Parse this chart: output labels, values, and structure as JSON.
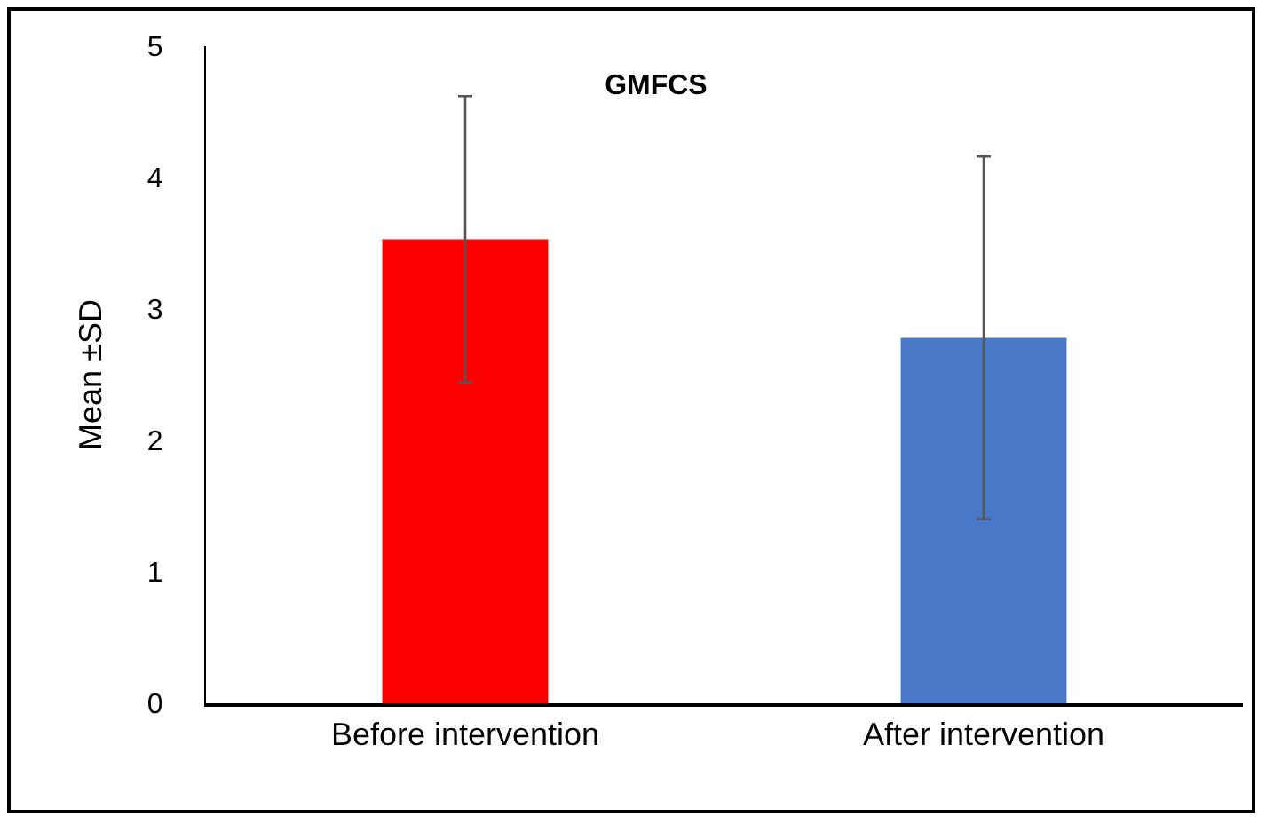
{
  "chart_data": {
    "type": "bar",
    "title": "GMFCS",
    "ylabel": "Mean ±SD",
    "categories": [
      "Before intervention",
      "After intervention"
    ],
    "values": [
      3.53,
      2.78
    ],
    "errors": [
      1.09,
      1.38
    ],
    "colors": [
      "#ff0000",
      "#4a78c8"
    ],
    "ylim": [
      0,
      5
    ],
    "yticks": [
      0,
      1,
      2,
      3,
      4,
      5
    ],
    "grid": false
  }
}
